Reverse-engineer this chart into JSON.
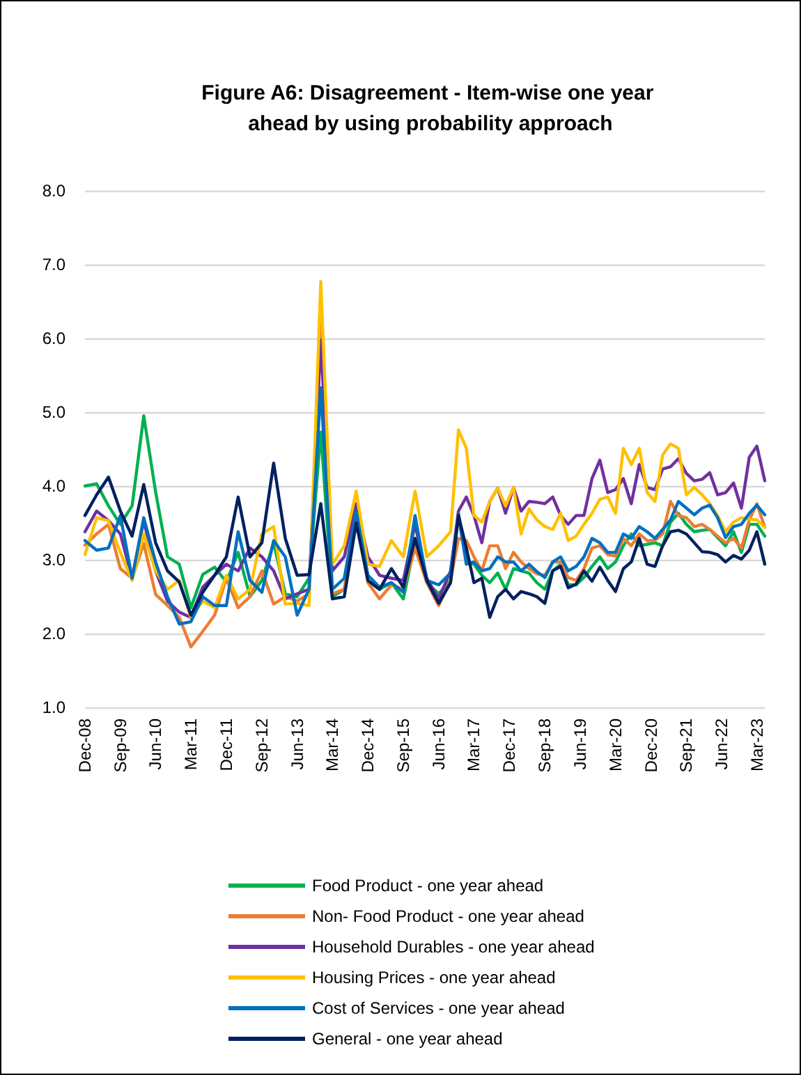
{
  "chart_data": {
    "type": "line",
    "title": "Figure A6: Disagreement - Item-wise one year ahead by using probability approach",
    "x": [
      "2008-12",
      "2009-03",
      "2009-06",
      "2009-09",
      "2009-12",
      "2010-03",
      "2010-06",
      "2010-09",
      "2010-12",
      "2011-03",
      "2011-06",
      "2011-09",
      "2011-12",
      "2012-03",
      "2012-06",
      "2012-09",
      "2012-12",
      "2013-03",
      "2013-06",
      "2013-09",
      "2013-12",
      "2014-03",
      "2014-06",
      "2014-09",
      "2014-12",
      "2015-03",
      "2015-06",
      "2015-09",
      "2015-12",
      "2016-03",
      "2016-06",
      "2016-09",
      "2016-11",
      "2017-01",
      "2017-03",
      "2017-05",
      "2017-07",
      "2017-09",
      "2017-11",
      "2018-01",
      "2018-03",
      "2018-05",
      "2018-07",
      "2018-09",
      "2018-11",
      "2019-01",
      "2019-03",
      "2019-05",
      "2019-07",
      "2019-09",
      "2019-11",
      "2020-01",
      "2020-03",
      "2020-05",
      "2020-07",
      "2020-09",
      "2020-11",
      "2021-01",
      "2021-03",
      "2021-05",
      "2021-07",
      "2021-09",
      "2021-11",
      "2022-01",
      "2022-03",
      "2022-05",
      "2022-07",
      "2022-09",
      "2022-11",
      "2023-01",
      "2023-03",
      "2023-05"
    ],
    "series": [
      {
        "name": "Food Product - one year ahead",
        "color": "#00b050",
        "values": [
          4.0,
          4.03,
          3.73,
          3.48,
          3.73,
          4.95,
          3.92,
          3.04,
          2.94,
          2.35,
          2.8,
          2.9,
          2.7,
          3.1,
          2.5,
          2.72,
          3.23,
          2.54,
          2.5,
          2.75,
          4.73,
          2.5,
          2.6,
          3.6,
          2.72,
          2.6,
          2.69,
          2.47,
          3.23,
          2.69,
          2.54,
          2.72,
          3.63,
          2.97,
          2.94,
          2.79,
          2.69,
          2.82,
          2.6,
          2.88,
          2.85,
          2.82,
          2.69,
          2.6,
          2.85,
          2.94,
          2.66,
          2.66,
          2.76,
          2.91,
          3.04,
          2.88,
          2.97,
          3.19,
          3.35,
          3.19,
          3.21,
          3.23,
          3.19,
          3.51,
          3.63,
          3.48,
          3.38,
          3.4,
          3.41,
          3.3,
          3.19,
          3.38,
          3.1,
          3.48,
          3.48,
          3.32
        ]
      },
      {
        "name": "Non- Food Product - one year ahead",
        "color": "#ed7d31",
        "values": [
          3.2,
          3.35,
          3.48,
          2.88,
          2.75,
          3.22,
          2.53,
          2.38,
          2.22,
          1.82,
          2.03,
          2.25,
          2.75,
          2.35,
          2.5,
          2.85,
          2.4,
          2.5,
          2.44,
          2.54,
          6.3,
          2.54,
          2.6,
          3.6,
          2.69,
          2.47,
          2.66,
          2.6,
          3.16,
          2.69,
          2.38,
          2.72,
          3.29,
          3.26,
          3.04,
          2.85,
          3.19,
          3.19,
          2.88,
          3.1,
          2.97,
          2.88,
          2.81,
          2.79,
          2.97,
          2.97,
          2.76,
          2.72,
          2.88,
          3.16,
          3.19,
          3.07,
          3.05,
          3.29,
          3.19,
          3.35,
          3.26,
          3.26,
          3.35,
          3.79,
          3.6,
          3.57,
          3.45,
          3.48,
          3.41,
          3.32,
          3.23,
          3.29,
          3.16,
          3.54,
          3.76,
          3.44
        ]
      },
      {
        "name": "Household Durables - one year ahead",
        "color": "#7030a0",
        "values": [
          3.38,
          3.66,
          3.53,
          3.35,
          2.75,
          3.53,
          2.85,
          2.44,
          2.29,
          2.22,
          2.63,
          2.79,
          2.94,
          2.85,
          3.16,
          3.04,
          2.85,
          2.47,
          2.54,
          2.6,
          5.98,
          2.85,
          3.04,
          3.76,
          3.04,
          2.79,
          2.75,
          2.72,
          3.48,
          2.75,
          2.47,
          2.85,
          3.66,
          3.85,
          3.6,
          3.23,
          3.79,
          3.97,
          3.63,
          3.98,
          3.66,
          3.79,
          3.78,
          3.76,
          3.85,
          3.6,
          3.48,
          3.6,
          3.6,
          4.1,
          4.35,
          3.91,
          3.95,
          4.1,
          3.76,
          4.29,
          3.98,
          3.95,
          4.23,
          4.26,
          4.37,
          4.17,
          4.07,
          4.09,
          4.18,
          3.88,
          3.91,
          4.04,
          3.7,
          4.39,
          4.54,
          4.07
        ]
      },
      {
        "name": "Housing Prices - one year ahead",
        "color": "#ffc000",
        "values": [
          3.07,
          3.57,
          3.53,
          3.1,
          2.72,
          3.35,
          2.85,
          2.6,
          2.72,
          2.22,
          2.44,
          2.35,
          2.79,
          2.47,
          2.6,
          3.35,
          3.45,
          2.4,
          2.41,
          2.38,
          6.77,
          2.94,
          3.19,
          3.93,
          2.94,
          2.91,
          3.26,
          3.04,
          3.93,
          3.04,
          3.19,
          3.38,
          4.76,
          4.51,
          3.6,
          3.51,
          3.79,
          3.97,
          3.73,
          3.98,
          3.35,
          3.69,
          3.54,
          3.45,
          3.41,
          3.63,
          3.26,
          3.32,
          3.48,
          3.63,
          3.82,
          3.85,
          3.63,
          4.51,
          4.29,
          4.51,
          3.91,
          3.79,
          4.42,
          4.57,
          4.51,
          3.88,
          3.98,
          3.88,
          3.76,
          3.6,
          3.38,
          3.51,
          3.57,
          3.55,
          3.54,
          3.44
        ]
      },
      {
        "name": "Cost of Services - one year ahead",
        "color": "#0070c0",
        "values": [
          3.26,
          3.13,
          3.16,
          3.6,
          2.75,
          3.57,
          2.97,
          2.5,
          2.13,
          2.16,
          2.5,
          2.38,
          2.38,
          3.38,
          2.72,
          2.56,
          3.26,
          3.04,
          2.25,
          2.6,
          5.33,
          2.6,
          2.75,
          3.66,
          2.79,
          2.63,
          2.69,
          2.56,
          3.6,
          2.72,
          2.66,
          2.82,
          3.6,
          2.94,
          2.97,
          2.85,
          2.88,
          3.04,
          2.97,
          2.97,
          2.85,
          2.94,
          2.84,
          2.76,
          2.97,
          3.04,
          2.85,
          2.91,
          3.04,
          3.29,
          3.23,
          3.1,
          3.1,
          3.35,
          3.29,
          3.45,
          3.38,
          3.29,
          3.41,
          3.54,
          3.79,
          3.7,
          3.61,
          3.7,
          3.74,
          3.57,
          3.3,
          3.45,
          3.48,
          3.63,
          3.74,
          3.61
        ]
      },
      {
        "name": "General - one year ahead",
        "color": "#002060",
        "values": [
          3.6,
          3.88,
          4.12,
          3.66,
          3.32,
          4.02,
          3.23,
          2.85,
          2.7,
          2.25,
          2.56,
          2.79,
          3.04,
          3.85,
          3.04,
          3.23,
          4.31,
          3.29,
          2.79,
          2.8,
          3.76,
          2.47,
          2.5,
          3.5,
          2.72,
          2.6,
          2.88,
          2.63,
          3.29,
          2.72,
          2.41,
          2.69,
          3.6,
          3.16,
          2.69,
          2.75,
          2.22,
          2.5,
          2.6,
          2.47,
          2.57,
          2.54,
          2.5,
          2.41,
          2.85,
          2.91,
          2.62,
          2.67,
          2.85,
          2.71,
          2.9,
          2.72,
          2.57,
          2.88,
          2.97,
          3.29,
          2.94,
          2.91,
          3.19,
          3.38,
          3.4,
          3.35,
          3.23,
          3.11,
          3.1,
          3.07,
          2.97,
          3.06,
          3.01,
          3.13,
          3.38,
          2.94
        ]
      }
    ],
    "xlim": [
      "2008-12",
      "2023-05"
    ],
    "xticks": [
      {
        "value": "2008-12",
        "label": "Dec-08"
      },
      {
        "value": "2009-09",
        "label": "Sep-09"
      },
      {
        "value": "2010-06",
        "label": "Jun-10"
      },
      {
        "value": "2011-03",
        "label": "Mar-11"
      },
      {
        "value": "2011-12",
        "label": "Dec-11"
      },
      {
        "value": "2012-09",
        "label": "Sep-12"
      },
      {
        "value": "2013-06",
        "label": "Jun-13"
      },
      {
        "value": "2014-03",
        "label": "Mar-14"
      },
      {
        "value": "2014-12",
        "label": "Dec-14"
      },
      {
        "value": "2015-09",
        "label": "Sep-15"
      },
      {
        "value": "2016-06",
        "label": "Jun-16"
      },
      {
        "value": "2017-03",
        "label": "Mar-17"
      },
      {
        "value": "2017-12",
        "label": "Dec-17"
      },
      {
        "value": "2018-09",
        "label": "Sep-18"
      },
      {
        "value": "2019-06",
        "label": "Jun-19"
      },
      {
        "value": "2020-03",
        "label": "Mar-20"
      },
      {
        "value": "2020-12",
        "label": "Dec-20"
      },
      {
        "value": "2021-09",
        "label": "Sep-21"
      },
      {
        "value": "2022-06",
        "label": "Jun-22"
      },
      {
        "value": "2023-03",
        "label": "Mar-23"
      }
    ],
    "ylim": [
      1,
      8
    ],
    "yticks": [
      {
        "value": 1,
        "label": "1.0"
      },
      {
        "value": 2,
        "label": "2.0"
      },
      {
        "value": 3,
        "label": "3.0"
      },
      {
        "value": 4,
        "label": "4.0"
      },
      {
        "value": 5,
        "label": "5.0"
      },
      {
        "value": 6,
        "label": "6.0"
      },
      {
        "value": 7,
        "label": "7.0"
      },
      {
        "value": 8,
        "label": "8.0"
      }
    ],
    "grid": "y",
    "legend": "bottom",
    "marker": "none",
    "line_style": "solid"
  }
}
